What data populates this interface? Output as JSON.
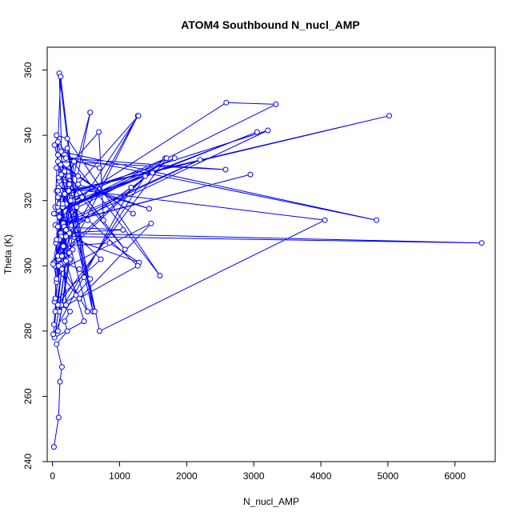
{
  "chart_data": {
    "type": "line",
    "title": "ATOM4 Southbound N_nucl_AMP",
    "xlabel": "N_nucl_AMP",
    "ylabel": "Theta (K)",
    "xlim": [
      -80,
      6600
    ],
    "ylim": [
      240,
      367
    ],
    "xticks": [
      0,
      1000,
      2000,
      3000,
      4000,
      5000,
      6000
    ],
    "yticks": [
      240,
      260,
      280,
      300,
      320,
      340,
      360
    ],
    "marker": "open-circle",
    "line_color": "#0000ff",
    "grid": false,
    "legend": "none",
    "series": [
      {
        "x": [
          20,
          90,
          110,
          140,
          60,
          220,
          180,
          260,
          130,
          350,
          560,
          400,
          170,
          1270,
          90,
          1680,
          80,
          250,
          300,
          160,
          850,
          1290,
          200,
          6400,
          120,
          1050,
          80,
          2200,
          40,
          2950,
          160,
          520,
          100,
          1820,
          40,
          3330,
          2590,
          90,
          3050,
          150,
          200,
          560,
          300,
          440,
          100,
          5020,
          240,
          90,
          4060,
          700,
          250,
          100,
          1440,
          90,
          380,
          130,
          690,
          760,
          180,
          60,
          1080,
          120,
          1200,
          80,
          2580,
          200,
          700,
          80,
          4830,
          130,
          220,
          600,
          30,
          630,
          80,
          1600,
          220,
          60,
          200,
          100,
          470,
          120,
          40,
          1490,
          130,
          260,
          80,
          1280,
          170,
          3210,
          80,
          140,
          1470,
          400,
          30,
          240,
          50,
          380,
          20,
          120,
          520,
          200,
          80,
          1700,
          100,
          320,
          140,
          60,
          20,
          360,
          80,
          260,
          60,
          150,
          10,
          200,
          30,
          720,
          20,
          1380,
          100,
          250,
          60,
          1270,
          40,
          300,
          80,
          200,
          30,
          470,
          100,
          80,
          40,
          270,
          10,
          1170,
          60,
          180,
          20,
          90
        ],
        "y": [
          244.5,
          253.5,
          264.5,
          269,
          276,
          280,
          283,
          286,
          288,
          291,
          296,
          299,
          301,
          346,
          302,
          333,
          303,
          304,
          305,
          306,
          307,
          301,
          309,
          307,
          310,
          311,
          312,
          332.5,
          312.5,
          328,
          313,
          314,
          315,
          333,
          316,
          349.5,
          350,
          317,
          341,
          318,
          319,
          347,
          320,
          321,
          322,
          346,
          323,
          324,
          314,
          280,
          325,
          326,
          317.5,
          327,
          327.5,
          328,
          341,
          314,
          329,
          330,
          305,
          331,
          316,
          332,
          329.5,
          333,
          330,
          334,
          314,
          335,
          336,
          286,
          337,
          286,
          338,
          297,
          339,
          340,
          288,
          359,
          296.5,
          358,
          318,
          328.5,
          309,
          301.5,
          318,
          346,
          312,
          341.5,
          321,
          299,
          313,
          290,
          300,
          327.5,
          307,
          325,
          301,
          300.5,
          286,
          311,
          288,
          333,
          319,
          332,
          303,
          295,
          301,
          318,
          280,
          302,
          296,
          319,
          300.5,
          311,
          289,
          302,
          316,
          327.5,
          286,
          310,
          323,
          300,
          286,
          320,
          312,
          301.5,
          278,
          283,
          308,
          323,
          290,
          320,
          279,
          324,
          308,
          322,
          282,
          300
        ]
      }
    ]
  }
}
